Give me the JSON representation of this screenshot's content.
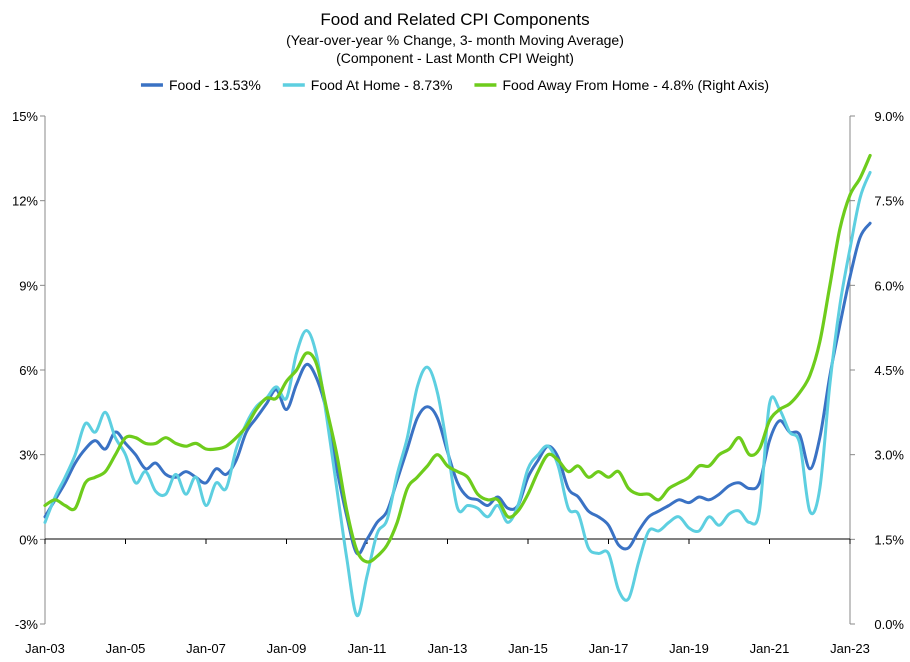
{
  "chart_data": {
    "type": "line",
    "title": "Food  and Related CPI Components",
    "subtitle": "(Year-over-year % Change, 3- month Moving Average)",
    "subtitle2": "(Component - Last Month CPI Weight)",
    "x_tick_labels": [
      "Jan-03",
      "Jan-05",
      "Jan-07",
      "Jan-09",
      "Jan-11",
      "Jan-13",
      "Jan-15",
      "Jan-17",
      "Jan-19",
      "Jan-21",
      "Jan-23"
    ],
    "x_range": [
      2003.0,
      2023.0
    ],
    "left_axis": {
      "ticks": [
        -3,
        0,
        3,
        6,
        9,
        12,
        15
      ],
      "tick_labels": [
        "-3%",
        "0%",
        "3%",
        "6%",
        "9%",
        "12%",
        "15%"
      ],
      "range": [
        -3,
        15
      ]
    },
    "right_axis": {
      "ticks": [
        0.0,
        1.5,
        3.0,
        4.5,
        6.0,
        7.5,
        9.0
      ],
      "tick_labels": [
        "0.0%",
        "1.5%",
        "3.0%",
        "4.5%",
        "6.0%",
        "7.5%",
        "9.0%"
      ],
      "range": [
        0,
        9
      ]
    },
    "series": [
      {
        "name": "Food - 13.53%",
        "axis": "left",
        "color": "#3a72c4",
        "points": [
          [
            2003.0,
            0.8
          ],
          [
            2003.25,
            1.4
          ],
          [
            2003.5,
            2.0
          ],
          [
            2003.75,
            2.7
          ],
          [
            2004.0,
            3.2
          ],
          [
            2004.25,
            3.5
          ],
          [
            2004.5,
            3.2
          ],
          [
            2004.75,
            3.8
          ],
          [
            2005.0,
            3.4
          ],
          [
            2005.25,
            3.0
          ],
          [
            2005.5,
            2.5
          ],
          [
            2005.75,
            2.7
          ],
          [
            2006.0,
            2.3
          ],
          [
            2006.25,
            2.2
          ],
          [
            2006.5,
            2.4
          ],
          [
            2006.75,
            2.2
          ],
          [
            2007.0,
            2.0
          ],
          [
            2007.25,
            2.5
          ],
          [
            2007.5,
            2.3
          ],
          [
            2007.75,
            2.8
          ],
          [
            2008.0,
            3.8
          ],
          [
            2008.25,
            4.3
          ],
          [
            2008.5,
            4.8
          ],
          [
            2008.75,
            5.3
          ],
          [
            2009.0,
            4.6
          ],
          [
            2009.25,
            5.5
          ],
          [
            2009.5,
            6.2
          ],
          [
            2009.75,
            5.7
          ],
          [
            2010.0,
            4.5
          ],
          [
            2010.25,
            2.5
          ],
          [
            2010.5,
            0.8
          ],
          [
            2010.75,
            -0.5
          ],
          [
            2011.0,
            0.0
          ],
          [
            2011.25,
            0.6
          ],
          [
            2011.5,
            1.0
          ],
          [
            2011.75,
            2.1
          ],
          [
            2012.0,
            3.2
          ],
          [
            2012.25,
            4.3
          ],
          [
            2012.5,
            4.7
          ],
          [
            2012.75,
            4.3
          ],
          [
            2013.0,
            3.1
          ],
          [
            2013.25,
            2.0
          ],
          [
            2013.5,
            1.5
          ],
          [
            2013.75,
            1.4
          ],
          [
            2014.0,
            1.2
          ],
          [
            2014.25,
            1.5
          ],
          [
            2014.5,
            1.1
          ],
          [
            2014.75,
            1.2
          ],
          [
            2015.0,
            2.2
          ],
          [
            2015.25,
            2.8
          ],
          [
            2015.5,
            3.3
          ],
          [
            2015.75,
            2.9
          ],
          [
            2016.0,
            1.8
          ],
          [
            2016.25,
            1.5
          ],
          [
            2016.5,
            1.0
          ],
          [
            2016.75,
            0.8
          ],
          [
            2017.0,
            0.5
          ],
          [
            2017.25,
            -0.2
          ],
          [
            2017.5,
            -0.3
          ],
          [
            2017.75,
            0.3
          ],
          [
            2018.0,
            0.8
          ],
          [
            2018.25,
            1.0
          ],
          [
            2018.5,
            1.2
          ],
          [
            2018.75,
            1.4
          ],
          [
            2019.0,
            1.3
          ],
          [
            2019.25,
            1.5
          ],
          [
            2019.5,
            1.4
          ],
          [
            2019.75,
            1.6
          ],
          [
            2020.0,
            1.9
          ],
          [
            2020.25,
            2.0
          ],
          [
            2020.5,
            1.8
          ],
          [
            2020.75,
            2.0
          ],
          [
            2021.0,
            3.5
          ],
          [
            2021.25,
            4.2
          ],
          [
            2021.5,
            3.8
          ],
          [
            2021.75,
            3.7
          ],
          [
            2022.0,
            2.5
          ],
          [
            2022.25,
            3.6
          ],
          [
            2022.5,
            5.8
          ],
          [
            2022.75,
            7.6
          ],
          [
            2023.0,
            9.3
          ],
          [
            2023.25,
            10.7
          ],
          [
            2023.5,
            11.2
          ]
        ]
      },
      {
        "name": "Food At Home - 8.73%",
        "axis": "left",
        "color": "#5dcfe0",
        "points": [
          [
            2003.0,
            0.6
          ],
          [
            2003.25,
            1.5
          ],
          [
            2003.5,
            2.2
          ],
          [
            2003.75,
            3.0
          ],
          [
            2004.0,
            4.1
          ],
          [
            2004.25,
            3.8
          ],
          [
            2004.5,
            4.5
          ],
          [
            2004.75,
            3.6
          ],
          [
            2005.0,
            3.0
          ],
          [
            2005.25,
            2.0
          ],
          [
            2005.5,
            2.4
          ],
          [
            2005.75,
            1.7
          ],
          [
            2006.0,
            1.6
          ],
          [
            2006.25,
            2.3
          ],
          [
            2006.5,
            1.6
          ],
          [
            2006.75,
            2.2
          ],
          [
            2007.0,
            1.2
          ],
          [
            2007.25,
            2.0
          ],
          [
            2007.5,
            1.8
          ],
          [
            2007.75,
            3.2
          ],
          [
            2008.0,
            4.1
          ],
          [
            2008.25,
            4.7
          ],
          [
            2008.5,
            5.0
          ],
          [
            2008.75,
            5.4
          ],
          [
            2009.0,
            5.0
          ],
          [
            2009.25,
            6.6
          ],
          [
            2009.5,
            7.4
          ],
          [
            2009.75,
            6.5
          ],
          [
            2010.0,
            4.3
          ],
          [
            2010.25,
            1.8
          ],
          [
            2010.5,
            -0.7
          ],
          [
            2010.75,
            -2.7
          ],
          [
            2011.0,
            -1.3
          ],
          [
            2011.25,
            0.2
          ],
          [
            2011.5,
            0.7
          ],
          [
            2011.75,
            2.3
          ],
          [
            2012.0,
            3.6
          ],
          [
            2012.25,
            5.4
          ],
          [
            2012.5,
            6.1
          ],
          [
            2012.75,
            5.2
          ],
          [
            2013.0,
            3.2
          ],
          [
            2013.25,
            1.1
          ],
          [
            2013.5,
            1.2
          ],
          [
            2013.75,
            1.1
          ],
          [
            2014.0,
            0.8
          ],
          [
            2014.25,
            1.2
          ],
          [
            2014.5,
            0.6
          ],
          [
            2014.75,
            1.2
          ],
          [
            2015.0,
            2.5
          ],
          [
            2015.25,
            3.0
          ],
          [
            2015.5,
            3.3
          ],
          [
            2015.75,
            2.6
          ],
          [
            2016.0,
            1.1
          ],
          [
            2016.25,
            0.9
          ],
          [
            2016.5,
            -0.3
          ],
          [
            2016.75,
            -0.5
          ],
          [
            2017.0,
            -0.5
          ],
          [
            2017.25,
            -1.8
          ],
          [
            2017.5,
            -2.1
          ],
          [
            2017.75,
            -0.8
          ],
          [
            2018.0,
            0.3
          ],
          [
            2018.25,
            0.3
          ],
          [
            2018.5,
            0.6
          ],
          [
            2018.75,
            0.8
          ],
          [
            2019.0,
            0.4
          ],
          [
            2019.25,
            0.3
          ],
          [
            2019.5,
            0.8
          ],
          [
            2019.75,
            0.5
          ],
          [
            2020.0,
            0.9
          ],
          [
            2020.25,
            1.0
          ],
          [
            2020.5,
            0.6
          ],
          [
            2020.75,
            1.0
          ],
          [
            2021.0,
            4.8
          ],
          [
            2021.25,
            4.6
          ],
          [
            2021.5,
            3.8
          ],
          [
            2021.75,
            3.4
          ],
          [
            2022.0,
            1.0
          ],
          [
            2022.25,
            1.8
          ],
          [
            2022.5,
            5.5
          ],
          [
            2022.75,
            8.3
          ],
          [
            2023.0,
            10.3
          ],
          [
            2023.25,
            12.1
          ],
          [
            2023.5,
            13.0
          ]
        ]
      },
      {
        "name": "Food Away From Home - 4.8% (Right Axis)",
        "axis": "right",
        "color": "#6ecc1c",
        "points": [
          [
            2003.0,
            2.1
          ],
          [
            2003.25,
            2.2
          ],
          [
            2003.5,
            2.1
          ],
          [
            2003.75,
            2.05
          ],
          [
            2004.0,
            2.5
          ],
          [
            2004.25,
            2.6
          ],
          [
            2004.5,
            2.7
          ],
          [
            2004.75,
            3.0
          ],
          [
            2005.0,
            3.3
          ],
          [
            2005.25,
            3.3
          ],
          [
            2005.5,
            3.2
          ],
          [
            2005.75,
            3.2
          ],
          [
            2006.0,
            3.3
          ],
          [
            2006.25,
            3.2
          ],
          [
            2006.5,
            3.15
          ],
          [
            2006.75,
            3.2
          ],
          [
            2007.0,
            3.1
          ],
          [
            2007.25,
            3.1
          ],
          [
            2007.5,
            3.15
          ],
          [
            2007.75,
            3.3
          ],
          [
            2008.0,
            3.5
          ],
          [
            2008.25,
            3.8
          ],
          [
            2008.5,
            4.0
          ],
          [
            2008.75,
            4.0
          ],
          [
            2009.0,
            4.3
          ],
          [
            2009.25,
            4.5
          ],
          [
            2009.5,
            4.8
          ],
          [
            2009.75,
            4.6
          ],
          [
            2010.0,
            3.8
          ],
          [
            2010.25,
            3.0
          ],
          [
            2010.5,
            2.0
          ],
          [
            2010.75,
            1.3
          ],
          [
            2011.0,
            1.1
          ],
          [
            2011.25,
            1.2
          ],
          [
            2011.5,
            1.4
          ],
          [
            2011.75,
            1.8
          ],
          [
            2012.0,
            2.4
          ],
          [
            2012.25,
            2.6
          ],
          [
            2012.5,
            2.8
          ],
          [
            2012.75,
            3.0
          ],
          [
            2013.0,
            2.8
          ],
          [
            2013.25,
            2.7
          ],
          [
            2013.5,
            2.6
          ],
          [
            2013.75,
            2.3
          ],
          [
            2014.0,
            2.2
          ],
          [
            2014.25,
            2.2
          ],
          [
            2014.5,
            1.9
          ],
          [
            2014.75,
            2.0
          ],
          [
            2015.0,
            2.3
          ],
          [
            2015.25,
            2.7
          ],
          [
            2015.5,
            3.0
          ],
          [
            2015.75,
            2.9
          ],
          [
            2016.0,
            2.7
          ],
          [
            2016.25,
            2.8
          ],
          [
            2016.5,
            2.6
          ],
          [
            2016.75,
            2.7
          ],
          [
            2017.0,
            2.6
          ],
          [
            2017.25,
            2.7
          ],
          [
            2017.5,
            2.4
          ],
          [
            2017.75,
            2.3
          ],
          [
            2018.0,
            2.3
          ],
          [
            2018.25,
            2.2
          ],
          [
            2018.5,
            2.4
          ],
          [
            2018.75,
            2.5
          ],
          [
            2019.0,
            2.6
          ],
          [
            2019.25,
            2.8
          ],
          [
            2019.5,
            2.8
          ],
          [
            2019.75,
            3.0
          ],
          [
            2020.0,
            3.1
          ],
          [
            2020.25,
            3.3
          ],
          [
            2020.5,
            3.0
          ],
          [
            2020.75,
            3.1
          ],
          [
            2021.0,
            3.6
          ],
          [
            2021.25,
            3.8
          ],
          [
            2021.5,
            3.9
          ],
          [
            2021.75,
            4.1
          ],
          [
            2022.0,
            4.4
          ],
          [
            2022.25,
            5.0
          ],
          [
            2022.5,
            6.0
          ],
          [
            2022.75,
            7.0
          ],
          [
            2023.0,
            7.6
          ],
          [
            2023.25,
            7.9
          ],
          [
            2023.5,
            8.3
          ]
        ]
      }
    ],
    "legend_position": "top-center",
    "grid": false
  }
}
